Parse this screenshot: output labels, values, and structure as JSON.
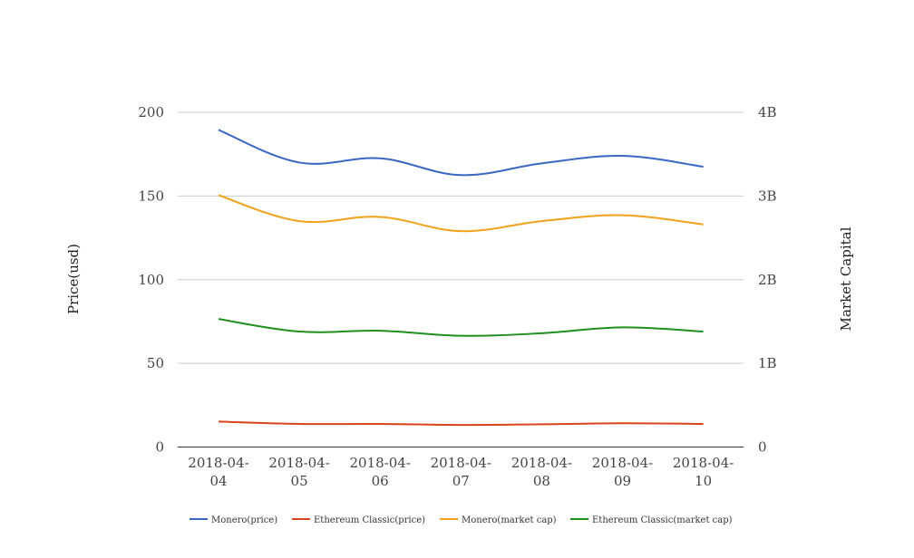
{
  "chart_data": {
    "type": "line",
    "categories": [
      "2018-04-04",
      "2018-04-05",
      "2018-04-06",
      "2018-04-07",
      "2018-04-08",
      "2018-04-09",
      "2018-04-10"
    ],
    "x_tick_labels": [
      [
        "2018-04-",
        "04"
      ],
      [
        "2018-04-",
        "05"
      ],
      [
        "2018-04-",
        "06"
      ],
      [
        "2018-04-",
        "07"
      ],
      [
        "2018-04-",
        "08"
      ],
      [
        "2018-04-",
        "09"
      ],
      [
        "2018-04-",
        "10"
      ]
    ],
    "ylabel": "Price(usd)",
    "y2label": "Market Capital",
    "ylim": [
      0,
      200
    ],
    "y2lim": [
      0,
      4000000000
    ],
    "y_ticks": [
      "0",
      "50",
      "100",
      "150",
      "200"
    ],
    "y2_ticks": [
      "0",
      "1B",
      "2B",
      "3B",
      "4B"
    ],
    "grid": true,
    "legend_position": "bottom",
    "series": [
      {
        "name": "Monero(price)",
        "axis": "left",
        "color": "#3a66c4",
        "values": [
          189.5,
          170,
          172.5,
          162.5,
          169.5,
          174,
          167.5
        ]
      },
      {
        "name": "Ethereum Classic(price)",
        "axis": "left",
        "color": "#d9441c",
        "values": [
          15.2,
          13.8,
          13.8,
          13.2,
          13.6,
          14.2,
          13.8
        ]
      },
      {
        "name": "Monero(market cap)",
        "axis": "right",
        "color": "#f2a11a",
        "values": [
          3010000000,
          2700000000,
          2750000000,
          2580000000,
          2700000000,
          2770000000,
          2660000000
        ]
      },
      {
        "name": "Ethereum Classic(market cap)",
        "axis": "right",
        "color": "#1f8f1f",
        "values": [
          1530000000,
          1380000000,
          1390000000,
          1330000000,
          1360000000,
          1430000000,
          1380000000
        ]
      }
    ]
  }
}
